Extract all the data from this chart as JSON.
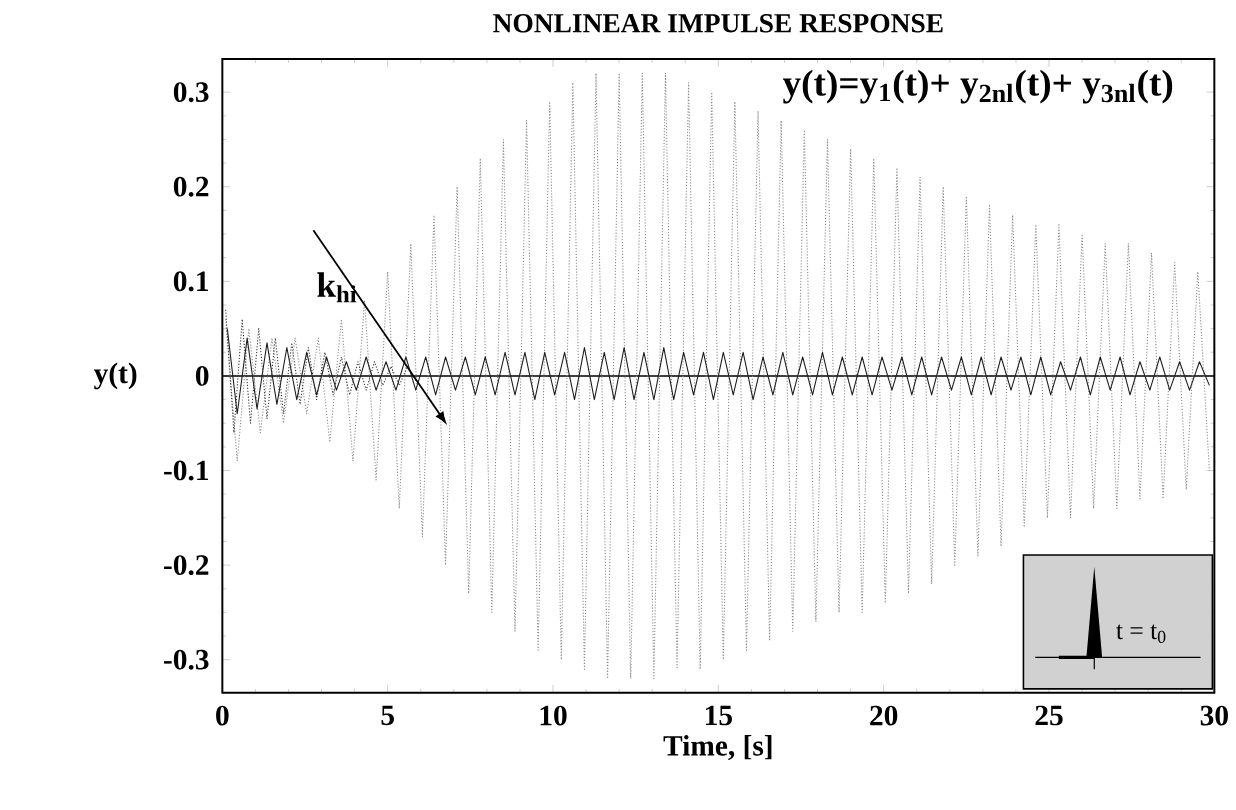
{
  "chart_data": {
    "type": "line",
    "title": "NONLINEAR IMPULSE RESPONSE",
    "xlabel": "Time, [s]",
    "ylabel": "y(t)",
    "xlim": [
      0,
      30
    ],
    "ylim": [
      -0.335,
      0.335
    ],
    "xticks": [
      0,
      5,
      10,
      15,
      20,
      25,
      30
    ],
    "yticks": [
      -0.3,
      -0.2,
      -0.1,
      0,
      0.1,
      0.2,
      0.3
    ],
    "annotations": [
      "y(t)=y$_{1}$(t)+ y$_{2nl}$(t)+ y$_{3nl}$(t)",
      {
        "text": "k$_{hi}$",
        "x": 6.8,
        "y": -0.052
      },
      "t = t$_{0}$"
    ],
    "ref_lines": [
      {
        "axis": "y",
        "value": 0,
        "color": "#000000"
      }
    ],
    "series": [
      {
        "color": "#8c8c8c",
        "line_style": "dotted",
        "x": [
          0.1,
          0.45,
          0.8,
          1.15,
          1.5,
          1.85,
          2.2,
          2.55,
          2.9,
          3.25,
          3.6,
          3.95,
          4.3,
          4.65,
          5.0,
          5.35,
          5.7,
          6.05,
          6.4,
          6.75,
          7.1,
          7.45,
          7.8,
          8.15,
          8.5,
          8.85,
          9.2,
          9.55,
          9.9,
          10.25,
          10.6,
          10.95,
          11.3,
          11.65,
          12.0,
          12.35,
          12.7,
          13.05,
          13.4,
          13.75,
          14.1,
          14.45,
          14.8,
          15.15,
          15.5,
          15.85,
          16.2,
          16.55,
          16.9,
          17.25,
          17.6,
          17.95,
          18.3,
          18.65,
          19.0,
          19.35,
          19.7,
          20.05,
          20.4,
          20.75,
          21.1,
          21.45,
          21.8,
          22.15,
          22.5,
          22.85,
          23.2,
          23.55,
          23.9,
          24.25,
          24.6,
          24.95,
          25.3,
          25.65,
          26.0,
          26.35,
          26.7,
          27.05,
          27.4,
          27.75,
          28.1,
          28.45,
          28.8,
          29.15,
          29.5,
          29.85
        ],
        "values": [
          0.06,
          -0.09,
          0.05,
          -0.06,
          0.04,
          -0.05,
          0.04,
          -0.04,
          0.04,
          -0.07,
          0.06,
          -0.09,
          0.08,
          -0.11,
          0.11,
          -0.14,
          0.14,
          -0.17,
          0.17,
          -0.2,
          0.2,
          -0.23,
          0.23,
          -0.25,
          0.25,
          -0.27,
          0.27,
          -0.29,
          0.29,
          -0.3,
          0.31,
          -0.31,
          0.32,
          -0.32,
          0.32,
          -0.32,
          0.32,
          -0.32,
          0.32,
          -0.31,
          0.31,
          -0.31,
          0.3,
          -0.3,
          0.29,
          -0.29,
          0.28,
          -0.28,
          0.27,
          -0.27,
          0.26,
          -0.26,
          0.25,
          -0.25,
          0.24,
          -0.25,
          0.23,
          -0.24,
          0.22,
          -0.23,
          0.21,
          -0.22,
          0.2,
          -0.2,
          0.19,
          -0.19,
          0.18,
          -0.18,
          0.17,
          -0.16,
          0.16,
          -0.15,
          0.16,
          -0.15,
          0.15,
          -0.14,
          0.14,
          -0.14,
          0.14,
          -0.13,
          0.13,
          -0.13,
          0.12,
          -0.12,
          0.11,
          -0.1
        ]
      },
      {
        "color": "#1e1e1e",
        "line_style": "solid",
        "x": [
          0.15,
          0.45,
          0.75,
          1.05,
          1.35,
          1.65,
          1.95,
          2.25,
          2.55,
          2.85,
          3.15,
          3.45,
          3.75,
          4.05,
          4.35,
          4.65,
          4.95,
          5.25,
          5.55,
          5.85,
          6.15,
          6.45,
          6.75,
          7.05,
          7.35,
          7.65,
          7.95,
          8.25,
          8.55,
          8.85,
          9.15,
          9.45,
          9.75,
          10.05,
          10.35,
          10.65,
          10.95,
          11.25,
          11.55,
          11.85,
          12.15,
          12.45,
          12.75,
          13.05,
          13.35,
          13.65,
          13.95,
          14.25,
          14.55,
          14.85,
          15.15,
          15.45,
          15.75,
          16.05,
          16.35,
          16.65,
          16.95,
          17.25,
          17.55,
          17.85,
          18.15,
          18.45,
          18.75,
          19.05,
          19.35,
          19.65,
          19.95,
          20.25,
          20.55,
          20.85,
          21.15,
          21.45,
          21.75,
          22.05,
          22.35,
          22.65,
          22.95,
          23.25,
          23.55,
          23.85,
          24.15,
          24.45,
          24.75,
          25.05,
          25.35,
          25.65,
          25.95,
          26.25,
          26.55,
          26.85,
          27.15,
          27.45,
          27.75,
          28.05,
          28.35,
          28.65,
          28.95,
          29.25,
          29.55,
          29.85
        ],
        "values": [
          0.05,
          -0.04,
          0.04,
          -0.035,
          0.035,
          -0.03,
          0.03,
          -0.025,
          0.025,
          -0.02,
          0.02,
          -0.015,
          0.015,
          -0.015,
          0.02,
          -0.015,
          0.015,
          -0.015,
          0.02,
          -0.015,
          0.02,
          -0.02,
          0.02,
          -0.015,
          0.02,
          -0.02,
          0.02,
          -0.02,
          0.025,
          -0.02,
          0.025,
          -0.025,
          0.025,
          -0.02,
          0.025,
          -0.025,
          0.03,
          -0.025,
          0.025,
          -0.025,
          0.03,
          -0.025,
          0.025,
          -0.025,
          0.03,
          -0.025,
          0.025,
          -0.02,
          0.025,
          -0.025,
          0.025,
          -0.02,
          0.025,
          -0.025,
          0.02,
          -0.02,
          0.025,
          -0.02,
          0.02,
          -0.02,
          0.025,
          -0.02,
          0.02,
          -0.02,
          0.02,
          -0.02,
          0.02,
          -0.015,
          0.02,
          -0.02,
          0.02,
          -0.02,
          0.02,
          -0.015,
          0.02,
          -0.02,
          0.02,
          -0.02,
          0.02,
          -0.015,
          0.02,
          -0.02,
          0.02,
          -0.02,
          0.015,
          -0.015,
          0.02,
          -0.02,
          0.02,
          -0.015,
          0.02,
          -0.02,
          0.015,
          -0.015,
          0.02,
          -0.015,
          0.015,
          -0.015,
          0.015,
          -0.01
        ]
      },
      {
        "color": "#333333",
        "line_style": "dotted",
        "x": [
          0.1,
          0.35,
          0.6,
          0.85,
          1.1,
          1.35,
          1.6,
          1.85,
          2.1,
          2.35,
          2.6,
          2.85,
          3.1,
          3.35,
          3.6,
          3.85,
          4.1,
          4.35,
          4.6,
          4.85,
          5.1,
          5.35,
          5.6,
          5.85
        ],
        "values": [
          0.07,
          -0.06,
          0.06,
          -0.05,
          0.05,
          -0.045,
          0.04,
          -0.04,
          0.035,
          -0.03,
          0.03,
          -0.025,
          0.025,
          -0.02,
          0.02,
          -0.02,
          0.015,
          -0.015,
          0.015,
          -0.01,
          0.01,
          -0.01,
          0.01,
          -0.005
        ]
      }
    ]
  }
}
